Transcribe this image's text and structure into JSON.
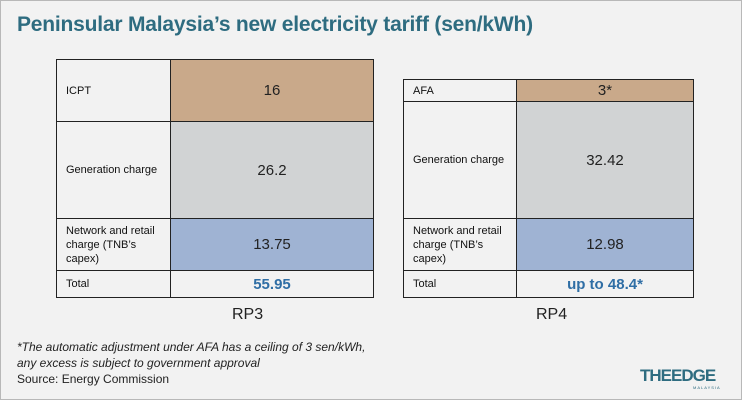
{
  "title": "Peninsular Malaysia’s new electricity tariff (sen/kWh)",
  "chart_data": [
    {
      "type": "table",
      "caption": "RP3",
      "rows": [
        {
          "label": "ICPT",
          "value": "16",
          "color": "#c9a98a"
        },
        {
          "label": "Generation charge",
          "value": "26.2",
          "color": "#d1d3d4"
        },
        {
          "label": "Network and retail charge (TNB’s capex)",
          "value": "13.75",
          "color": "#9fb3d3"
        }
      ],
      "total_label": "Total",
      "total_value": "55.95"
    },
    {
      "type": "table",
      "caption": "RP4",
      "rows": [
        {
          "label": "AFA",
          "value": "3*",
          "color": "#c9a98a"
        },
        {
          "label": "Generation charge",
          "value": "32.42",
          "color": "#d1d3d4"
        },
        {
          "label": "Network and retail charge (TNB’s capex)",
          "value": "12.98",
          "color": "#9fb3d3"
        }
      ],
      "total_label": "Total",
      "total_value": "up to 48.4*"
    }
  ],
  "footnote": {
    "line1": "*The automatic adjustment under AFA has a ceiling of 3 sen/kWh,",
    "line2": "any excess is subject to government approval",
    "source": "Source: Energy Commission"
  },
  "logo": {
    "text": "THEEDGE",
    "sub": "MALAYSIA"
  }
}
